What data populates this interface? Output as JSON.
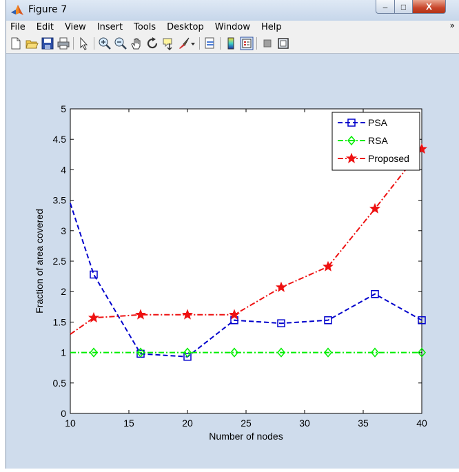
{
  "window": {
    "title": "Figure 7",
    "controls": {
      "minimize": "–",
      "maximize": "□",
      "close": "X"
    }
  },
  "menu": {
    "items": [
      "File",
      "Edit",
      "View",
      "Insert",
      "Tools",
      "Desktop",
      "Window",
      "Help"
    ],
    "overflow": "»"
  },
  "toolbar": {
    "icons": [
      "new-figure-icon",
      "open-file-icon",
      "save-figure-icon",
      "print-figure-icon",
      "edit-plot-icon",
      "zoom-in-icon",
      "zoom-out-icon",
      "pan-icon",
      "rotate-3d-icon",
      "data-cursor-icon",
      "brush-icon",
      "brush-dropdown-icon",
      "link-plot-icon",
      "insert-colorbar-icon",
      "insert-legend-icon",
      "hide-plot-tools-icon",
      "show-plot-tools-icon"
    ]
  },
  "chart_data": {
    "type": "line",
    "title": "",
    "xlabel": "Number of nodes",
    "ylabel": "Fraction of area covered",
    "xlim": [
      10,
      40
    ],
    "ylim": [
      0,
      5
    ],
    "xticks": [
      "10",
      "15",
      "20",
      "25",
      "30",
      "35",
      "40"
    ],
    "yticks": [
      "0",
      "0.5",
      "1",
      "1.5",
      "2",
      "2.5",
      "3",
      "3.5",
      "4",
      "4.5",
      "5"
    ],
    "grid": false,
    "legend_position": "top-right",
    "series": [
      {
        "name": "PSA",
        "color": "#0000cc",
        "line_style": "dashed",
        "marker": "square",
        "x": [
          10,
          12,
          16,
          20,
          24,
          28,
          32,
          36,
          40
        ],
        "y": [
          3.45,
          2.28,
          0.98,
          0.93,
          1.53,
          1.48,
          1.53,
          1.96,
          1.53
        ]
      },
      {
        "name": "RSA",
        "color": "#00ee00",
        "line_style": "dash-dot",
        "marker": "diamond",
        "x": [
          10,
          12,
          16,
          20,
          24,
          28,
          32,
          36,
          40
        ],
        "y": [
          1.0,
          1.0,
          1.0,
          1.0,
          1.0,
          1.0,
          1.0,
          1.0,
          1.0
        ]
      },
      {
        "name": "Proposed",
        "color": "#ee1111",
        "line_style": "dash-dot",
        "marker": "star",
        "x": [
          10,
          12,
          16,
          20,
          24,
          28,
          32,
          36,
          40
        ],
        "y": [
          1.3,
          1.57,
          1.62,
          1.62,
          1.62,
          2.07,
          2.41,
          3.36,
          4.34
        ]
      }
    ]
  }
}
